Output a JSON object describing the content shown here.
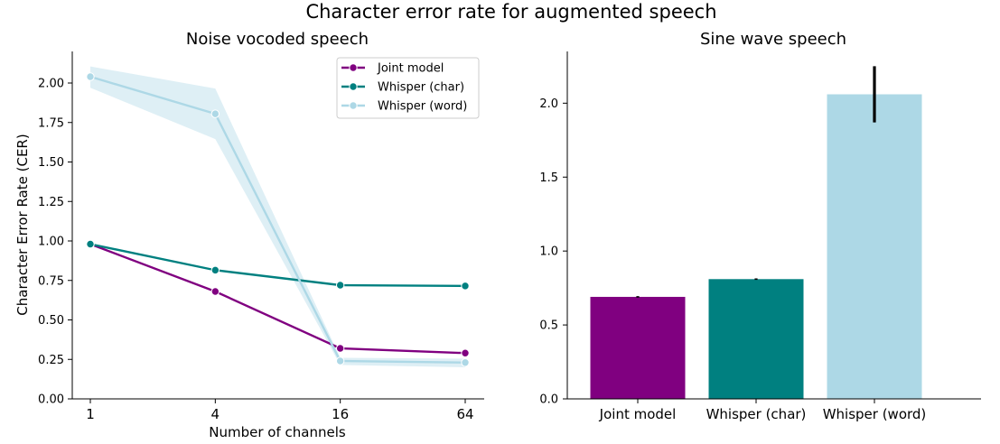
{
  "figure_title": "Character error rate for augmented speech",
  "chart_data": [
    {
      "type": "line",
      "title": "Noise vocoded speech",
      "xlabel": "Number of channels",
      "ylabel": "Character Error Rate (CER)",
      "x_scale": "log2",
      "x": [
        1,
        4,
        16,
        64
      ],
      "x_tick_labels": [
        "1",
        "4",
        "16",
        "64"
      ],
      "ylim": [
        0,
        2.2
      ],
      "y_ticks": [
        0.0,
        0.25,
        0.5,
        0.75,
        1.0,
        1.25,
        1.5,
        1.75,
        2.0
      ],
      "y_tick_labels": [
        "0.00",
        "0.25",
        "0.50",
        "0.75",
        "1.00",
        "1.25",
        "1.50",
        "1.75",
        "2.00"
      ],
      "grid": false,
      "legend_position": "top-right",
      "series": [
        {
          "name": "Joint model",
          "color": "#800080",
          "marker": "circle",
          "values": [
            0.98,
            0.68,
            0.32,
            0.29
          ]
        },
        {
          "name": "Whisper (char)",
          "color": "#008080",
          "marker": "circle",
          "values": [
            0.98,
            0.815,
            0.72,
            0.715
          ]
        },
        {
          "name": "Whisper (word)",
          "color": "#add8e6",
          "marker": "circle",
          "values": [
            2.04,
            1.805,
            0.24,
            0.23
          ],
          "ci_lower": [
            1.97,
            1.645,
            0.215,
            0.2
          ],
          "ci_upper": [
            2.105,
            1.965,
            0.26,
            0.255
          ]
        }
      ]
    },
    {
      "type": "bar",
      "title": "Sine wave speech",
      "categories": [
        "Joint model",
        "Whisper (char)",
        "Whisper (word)"
      ],
      "values": [
        0.69,
        0.81,
        2.06
      ],
      "error_low": [
        0.685,
        0.805,
        1.87
      ],
      "error_high": [
        0.695,
        0.815,
        2.25
      ],
      "colors": [
        "#800080",
        "#008080",
        "#add8e6"
      ],
      "ylim": [
        0,
        2.35
      ],
      "y_ticks": [
        0.0,
        0.5,
        1.0,
        1.5,
        2.0
      ],
      "y_tick_labels": [
        "0.0",
        "0.5",
        "1.0",
        "1.5",
        "2.0"
      ],
      "grid": false
    }
  ]
}
